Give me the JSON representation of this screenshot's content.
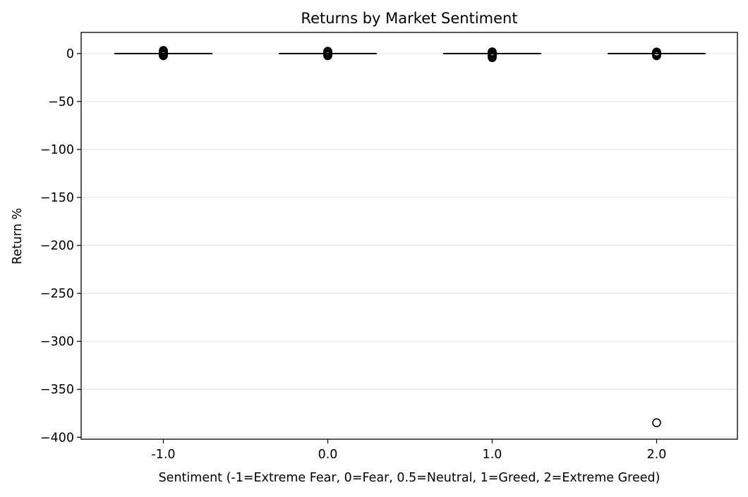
{
  "chart_data": {
    "type": "box",
    "title": "Returns by Market Sentiment",
    "xlabel": "Sentiment (-1=Extreme Fear, 0=Fear, 0.5=Neutral, 1=Greed, 2=Extreme Greed)",
    "ylabel": "Return %",
    "categories": [
      "-1.0",
      "0.0",
      "1.0",
      "2.0"
    ],
    "ylim": [
      -402,
      22
    ],
    "yticks": [
      0,
      -50,
      -100,
      -150,
      -200,
      -250,
      -300,
      -350,
      -400
    ],
    "ytick_labels": [
      "0",
      "−50",
      "−100",
      "−150",
      "−200",
      "−250",
      "−300",
      "−350",
      "−400"
    ],
    "grid": {
      "y": true,
      "x": false
    },
    "legend": "none",
    "boxes": [
      {
        "category": "-1.0",
        "median": 0,
        "q1": 0,
        "q3": 0,
        "whisker_low": 0,
        "whisker_high": 0,
        "outliers": [
          3.2,
          2.4,
          1.7,
          1.0,
          0.6,
          -0.6,
          -1.0,
          -1.6,
          -2.3
        ]
      },
      {
        "category": "0.0",
        "median": 0,
        "q1": 0,
        "q3": 0,
        "whisker_low": 0,
        "whisker_high": 0,
        "outliers": [
          2.4,
          1.8,
          1.2,
          0.6,
          -0.6,
          -1.1,
          -1.7,
          -2.3
        ]
      },
      {
        "category": "1.0",
        "median": 0,
        "q1": 0,
        "q3": 0,
        "whisker_low": 0,
        "whisker_high": 0,
        "outliers": [
          1.8,
          1.2,
          0.6,
          -0.6,
          -1.2,
          -1.9,
          -2.7,
          -3.5,
          -4.3
        ]
      },
      {
        "category": "2.0",
        "median": 0,
        "q1": 0,
        "q3": 0,
        "whisker_low": 0,
        "whisker_high": 0,
        "outliers": [
          1.6,
          1.0,
          0.5,
          -0.5,
          -1.0,
          -1.6,
          -2.3,
          -384.9
        ]
      }
    ],
    "colors": {
      "axis": "#000000",
      "grid": "#e6e6e6",
      "box": "#000000",
      "outlier_edge": "#000000",
      "background": "#ffffff"
    }
  }
}
